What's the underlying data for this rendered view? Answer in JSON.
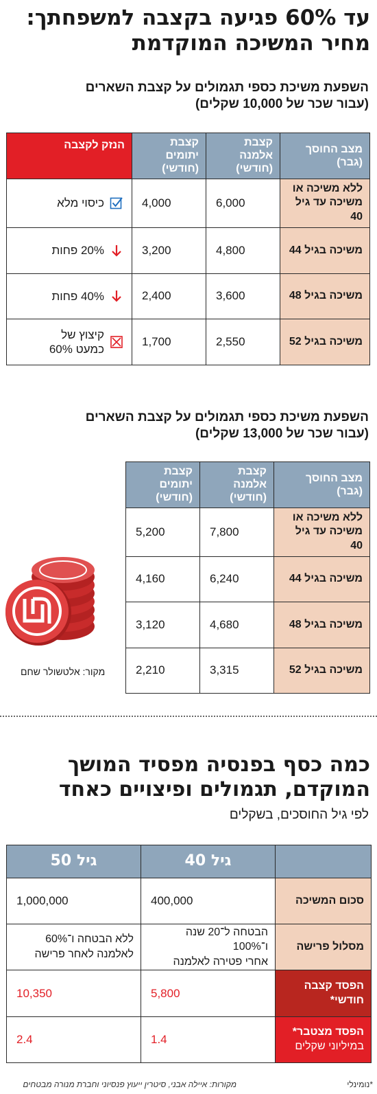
{
  "header": {
    "title_line1": "עד 60% פגיעה בקצבה למשפחתך:",
    "title_line2": "מחיר המשיכה המוקדמת"
  },
  "table1": {
    "subtitle_line1": "השפעת משיכת כספי תגמולים על קצבת השארים",
    "subtitle_line2": "(עבור שכר של 10,000 שקלים)",
    "headers": {
      "status_line1": "מצב החוסך",
      "status_line2": "(גבר)",
      "widow_line1": "קצבת אלמנה",
      "widow_line2": "(חודשי)",
      "orphans_line1": "קצבת יתומים",
      "orphans_line2": "(חודשי)",
      "damage": "הנזק לקצבה"
    },
    "rows": [
      {
        "status_line1": "ללא משיכה או",
        "status_line2": "משיכה עד גיל 40",
        "widow": "6,000",
        "orphans": "4,000",
        "damage": "כיסוי מלא",
        "damage_line2": ""
      },
      {
        "status_line1": "משיכה בגיל 44",
        "status_line2": "",
        "widow": "4,800",
        "orphans": "3,200",
        "damage": "20% פחות",
        "damage_line2": ""
      },
      {
        "status_line1": "משיכה בגיל 48",
        "status_line2": "",
        "widow": "3,600",
        "orphans": "2,400",
        "damage": "40% פחות",
        "damage_line2": ""
      },
      {
        "status_line1": "משיכה בגיל 52",
        "status_line2": "",
        "widow": "2,550",
        "orphans": "1,700",
        "damage": "קיצוץ של",
        "damage_line2": "כמעט 60%"
      }
    ],
    "icons": [
      "checkbox-check-icon",
      "down-arrow-icon",
      "down-arrow-icon",
      "checkbox-x-icon"
    ]
  },
  "table2": {
    "subtitle_line1": "השפעת משיכת כספי תגמולים על קצבת השארים",
    "subtitle_line2": "(עבור שכר של 13,000 שקלים)",
    "headers": {
      "status_line1": "מצב החוסך",
      "status_line2": "(גבר)",
      "widow_line1": "קצבת אלמנה",
      "widow_line2": "(חודשי)",
      "orphans_line1": "קצבת יתומים",
      "orphans_line2": "(חודשי)"
    },
    "rows": [
      {
        "status_line1": "ללא משיכה או",
        "status_line2": "משיכה עד גיל 40",
        "widow": "7,800",
        "orphans": "5,200"
      },
      {
        "status_line1": "משיכה בגיל 44",
        "status_line2": "",
        "widow": "6,240",
        "orphans": "4,160"
      },
      {
        "status_line1": "משיכה בגיל 48",
        "status_line2": "",
        "widow": "4,680",
        "orphans": "3,120"
      },
      {
        "status_line1": "משיכה בגיל 52",
        "status_line2": "",
        "widow": "3,315",
        "orphans": "2,210"
      }
    ],
    "source": "מקור: אלטשולר שחם"
  },
  "section3": {
    "title_line1": "כמה כסף בפנסיה מפסיד המושך",
    "title_line2": "המוקדם, תגמולים ופיצויים כאחד",
    "subtitle": "לפי גיל החוסכים, בשקלים",
    "col_age40": "גיל 40",
    "col_age50": "גיל 50",
    "rows": {
      "amount_label": "סכום המשיכה",
      "amount_40": "400,000",
      "amount_50": "1,000,000",
      "track_label": "מסלול פרישה",
      "track_40_line1": "הבטחה ל־20 שנה ו־100%",
      "track_40_line2": "אחרי פטירה לאלמנה",
      "track_50_line1": "ללא הבטחה ו־60%",
      "track_50_line2": "לאלמנה לאחר פרישה",
      "monthly_label_line1": "הפסד קצבה",
      "monthly_label_line2": "חודשי*",
      "monthly_40": "5,800",
      "monthly_50": "10,350",
      "cumulative_label_line1": "הפסד מצטבר*",
      "cumulative_label_line2": "במיליוני שקלים",
      "cumulative_40": "1.4",
      "cumulative_50": "2.4"
    }
  },
  "footer": {
    "sources": "מקורות: איילה אבני, סיטרין ייעוץ פנסיוני וחברת מנורה מבטחים",
    "note": "*נומינלי"
  },
  "colors": {
    "header_blue": "#8fa6bb",
    "row_peach": "#f2d2bd",
    "red": "#e21f26",
    "dark_red": "#b8261f"
  }
}
